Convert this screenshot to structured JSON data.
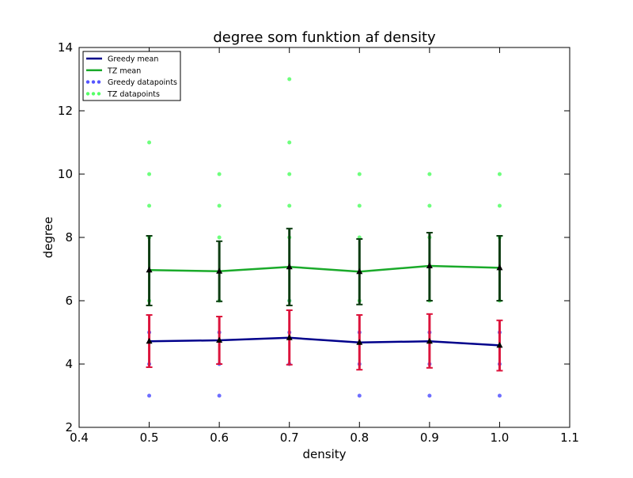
{
  "chart_data": {
    "type": "line",
    "title": "degree som funktion af density",
    "xlabel": "density",
    "ylabel": "degree",
    "xlim": [
      0.4,
      1.1
    ],
    "ylim": [
      2,
      14
    ],
    "xticks": [
      0.4,
      0.5,
      0.6,
      0.7,
      0.8,
      0.9,
      1.0,
      1.1
    ],
    "yticks": [
      2,
      4,
      6,
      8,
      10,
      12,
      14
    ],
    "xtick_labels": [
      "0.4",
      "0.5",
      "0.6",
      "0.7",
      "0.8",
      "0.9",
      "1.0",
      "1.1"
    ],
    "ytick_labels": [
      "2",
      "4",
      "6",
      "8",
      "10",
      "12",
      "14"
    ],
    "grid": false,
    "legend_position": "top-left",
    "x": [
      0.5,
      0.6,
      0.7,
      0.8,
      0.9,
      1.0
    ],
    "series": [
      {
        "name": "Greedy mean",
        "kind": "line",
        "color": "#00008b",
        "errorbar_color": "#dc143c",
        "marker": "triangle",
        "values": [
          4.72,
          4.75,
          4.83,
          4.68,
          4.72,
          4.59
        ],
        "err_low": [
          3.9,
          4.0,
          3.98,
          3.82,
          3.88,
          3.79
        ],
        "err_high": [
          5.55,
          5.5,
          5.7,
          5.55,
          5.58,
          5.38
        ]
      },
      {
        "name": "TZ mean",
        "kind": "line",
        "color": "#1aaa2a",
        "errorbar_color": "#0d3d12",
        "marker": "triangle",
        "values": [
          6.97,
          6.93,
          7.07,
          6.92,
          7.1,
          7.04
        ],
        "err_low": [
          5.85,
          5.98,
          5.85,
          5.88,
          6.0,
          6.0
        ],
        "err_high": [
          8.05,
          7.88,
          8.28,
          7.95,
          8.15,
          8.05
        ]
      },
      {
        "name": "Greedy datapoints",
        "kind": "scatter",
        "color": "#5555ff",
        "points": [
          [
            0.5,
            3
          ],
          [
            0.5,
            4
          ],
          [
            0.5,
            5
          ],
          [
            0.6,
            3
          ],
          [
            0.6,
            4
          ],
          [
            0.6,
            5
          ],
          [
            0.7,
            4
          ],
          [
            0.7,
            5
          ],
          [
            0.7,
            6
          ],
          [
            0.8,
            3
          ],
          [
            0.8,
            4
          ],
          [
            0.8,
            5
          ],
          [
            0.9,
            3
          ],
          [
            0.9,
            4
          ],
          [
            0.9,
            5
          ],
          [
            1.0,
            3
          ],
          [
            1.0,
            4
          ],
          [
            1.0,
            5
          ]
        ]
      },
      {
        "name": "TZ datapoints",
        "kind": "scatter",
        "color": "#55ff66",
        "points": [
          [
            0.5,
            6
          ],
          [
            0.5,
            8
          ],
          [
            0.5,
            9
          ],
          [
            0.5,
            10
          ],
          [
            0.5,
            11
          ],
          [
            0.6,
            6
          ],
          [
            0.6,
            8
          ],
          [
            0.6,
            9
          ],
          [
            0.6,
            10
          ],
          [
            0.7,
            6
          ],
          [
            0.7,
            8
          ],
          [
            0.7,
            9
          ],
          [
            0.7,
            10
          ],
          [
            0.7,
            11
          ],
          [
            0.7,
            13
          ],
          [
            0.8,
            6
          ],
          [
            0.8,
            8
          ],
          [
            0.8,
            9
          ],
          [
            0.8,
            10
          ],
          [
            0.9,
            6
          ],
          [
            0.9,
            8
          ],
          [
            0.9,
            9
          ],
          [
            0.9,
            10
          ],
          [
            1.0,
            6
          ],
          [
            1.0,
            8
          ],
          [
            1.0,
            9
          ],
          [
            1.0,
            10
          ]
        ]
      }
    ]
  }
}
